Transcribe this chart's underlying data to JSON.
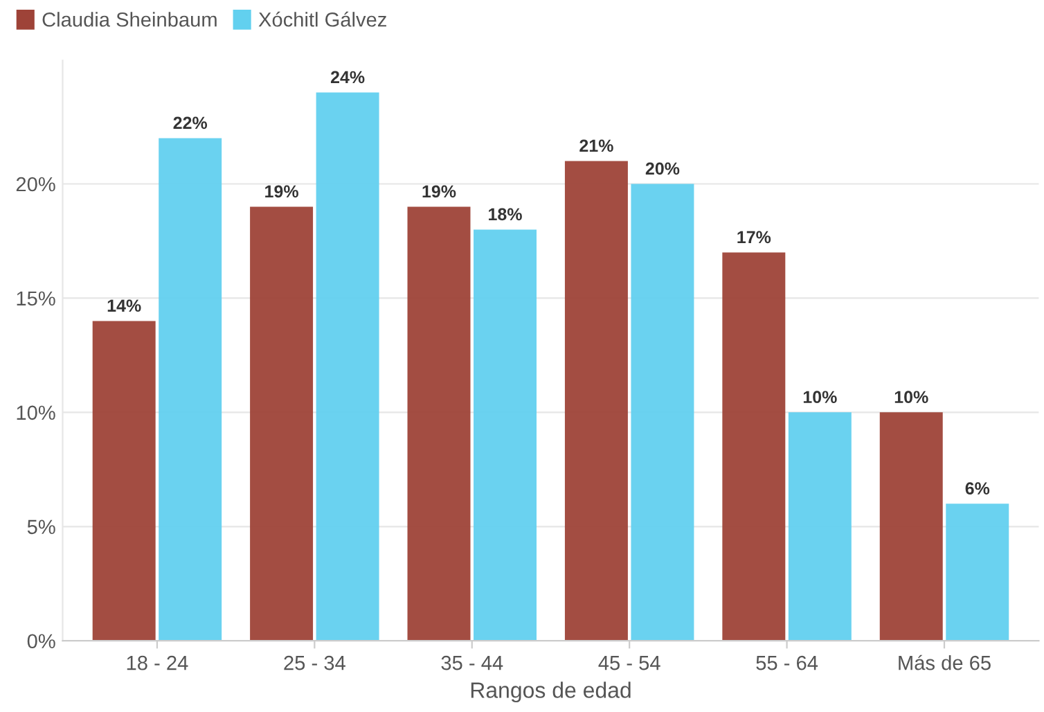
{
  "chart_data": {
    "type": "bar",
    "xlabel": "Rangos de edad",
    "categories": [
      "18 - 24",
      "25 - 34",
      "35 - 44",
      "45 - 54",
      "55 - 64",
      "Más de 65"
    ],
    "series": [
      {
        "name": "Claudia Sheinbaum",
        "color": "#9e4338",
        "values": [
          14,
          19,
          19,
          21,
          17,
          10
        ],
        "value_labels": [
          "14%",
          "19%",
          "19%",
          "21%",
          "17%",
          "10%"
        ]
      },
      {
        "name": "Xóchitl Gálvez",
        "color": "#62d0ef",
        "values": [
          22,
          24,
          18,
          20,
          10,
          6
        ],
        "value_labels": [
          "22%",
          "24%",
          "18%",
          "20%",
          "10%",
          "6%"
        ]
      }
    ],
    "ylim": [
      0,
      25.4
    ],
    "yticks": [
      {
        "value": 0,
        "label": "0%"
      },
      {
        "value": 5,
        "label": "5%"
      },
      {
        "value": 10,
        "label": "10%"
      },
      {
        "value": 15,
        "label": "15%"
      },
      {
        "value": 20,
        "label": "20%"
      }
    ],
    "grid": "y",
    "legend": "top left"
  }
}
